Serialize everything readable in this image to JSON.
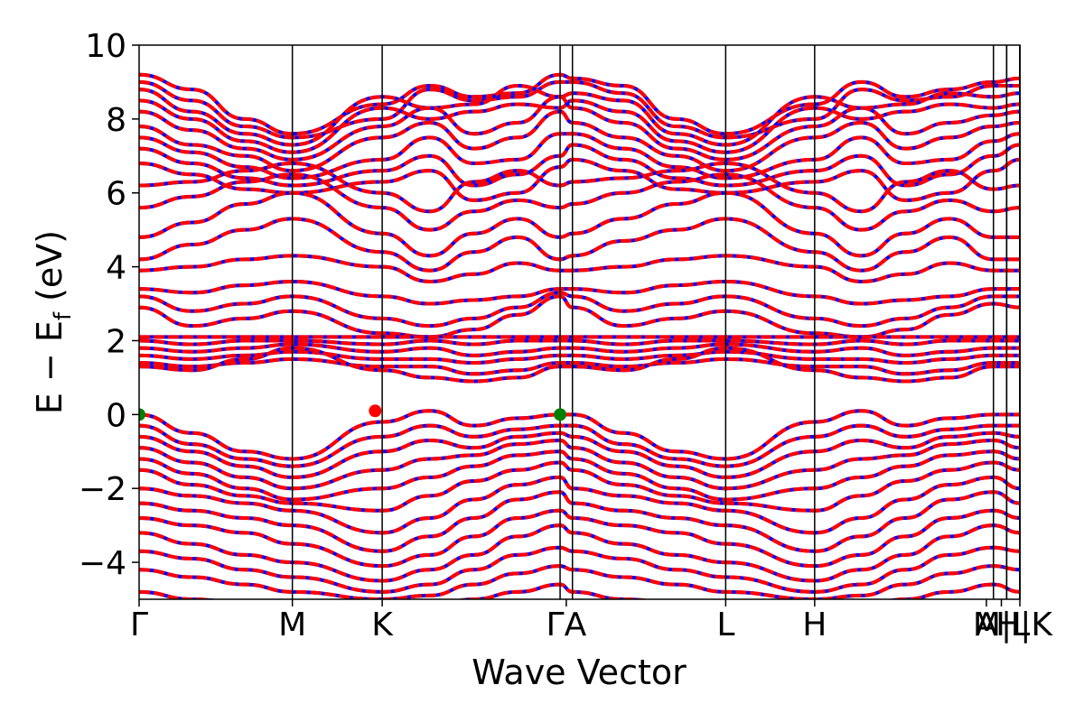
{
  "chart_data": {
    "type": "line",
    "xlabel": "Wave Vector",
    "ylabel_main": "E − E",
    "ylabel_sub": "f",
    "ylabel_unit": " (eV)",
    "ylim": [
      -5,
      10
    ],
    "yticks": [
      -4,
      -2,
      0,
      2,
      4,
      6,
      8,
      10
    ],
    "ytick_labels": [
      "−4",
      "−2",
      "0",
      "2",
      "4",
      "6",
      "8",
      "10"
    ],
    "kpath": [
      {
        "label": "Γ",
        "x": 0.0
      },
      {
        "label": "M",
        "x": 0.174
      },
      {
        "label": "K",
        "x": 0.276
      },
      {
        "label": "Γ",
        "x": 0.478
      },
      {
        "label": "A",
        "x": 0.492
      },
      {
        "label": "L",
        "x": 0.666
      },
      {
        "label": "H",
        "x": 0.767
      },
      {
        "label": "A",
        "x": 0.97
      },
      {
        "label": "L",
        "x": 0.985
      },
      {
        "label": "M",
        "x": 0.985
      },
      {
        "label": "H",
        "x": 1.0
      },
      {
        "label": "K",
        "x": 1.0
      }
    ],
    "xtick_labels": [
      {
        "text": "Γ",
        "x": 0.0
      },
      {
        "text": "M",
        "x": 0.174
      },
      {
        "text": "K",
        "x": 0.276
      },
      {
        "text": "ΓA",
        "x": 0.485
      },
      {
        "text": "L",
        "x": 0.666
      },
      {
        "text": "H",
        "x": 0.767
      },
      {
        "text": "A",
        "x": 0.962
      },
      {
        "text": "M|L",
        "x": 0.979
      },
      {
        "text": "H|K",
        "x": 1.0
      }
    ],
    "series": [
      {
        "color": "#0000ff",
        "style": "solid"
      },
      {
        "color": "#ff0000",
        "style": "dashed"
      }
    ],
    "markers": [
      {
        "x": 0.0,
        "y": 0.0,
        "color": "#008000"
      },
      {
        "x": 0.478,
        "y": 0.0,
        "color": "#008000"
      },
      {
        "x": 0.268,
        "y": 0.1,
        "color": "#ff0000"
      }
    ],
    "bands": [
      [
        9.2,
        8.8,
        8.0,
        7.6,
        8.4,
        8.9,
        8.6,
        8.7,
        9.2,
        9.1,
        8.9,
        8.0,
        7.6,
        8.4,
        9.0,
        8.6,
        8.8,
        9.0,
        9.1
      ],
      [
        9.0,
        8.5,
        7.8,
        7.5,
        8.0,
        8.8,
        8.5,
        8.6,
        9.0,
        9.0,
        8.7,
        7.8,
        7.5,
        8.0,
        8.8,
        8.5,
        8.6,
        8.9,
        8.9
      ],
      [
        8.8,
        8.2,
        7.6,
        7.3,
        8.6,
        8.3,
        8.4,
        8.9,
        8.6,
        8.7,
        8.5,
        7.6,
        7.3,
        8.6,
        8.3,
        8.4,
        8.7,
        8.6,
        8.7
      ],
      [
        8.5,
        8.0,
        7.4,
        7.1,
        8.3,
        8.0,
        8.2,
        8.4,
        8.3,
        8.5,
        8.2,
        7.4,
        7.1,
        8.3,
        8.0,
        8.2,
        8.4,
        8.3,
        8.4
      ],
      [
        8.2,
        7.7,
        7.2,
        6.9,
        7.8,
        8.3,
        7.6,
        7.9,
        8.6,
        8.3,
        7.9,
        7.2,
        6.9,
        7.8,
        8.3,
        7.6,
        7.9,
        8.1,
        8.2
      ],
      [
        7.8,
        7.3,
        7.0,
        6.6,
        7.5,
        7.9,
        7.2,
        7.5,
        8.2,
        7.9,
        7.5,
        7.0,
        6.6,
        7.5,
        7.9,
        7.2,
        7.5,
        7.8,
        7.9
      ],
      [
        7.5,
        7.1,
        6.7,
        6.4,
        6.9,
        7.5,
        6.8,
        6.9,
        7.6,
        7.6,
        7.2,
        6.7,
        6.4,
        6.9,
        7.5,
        6.8,
        6.9,
        7.4,
        7.6
      ],
      [
        7.2,
        6.8,
        6.4,
        6.2,
        6.6,
        7.0,
        6.2,
        6.5,
        7.0,
        7.3,
        6.9,
        6.4,
        6.2,
        6.6,
        7.0,
        6.2,
        6.5,
        7.0,
        7.3
      ],
      [
        6.8,
        6.5,
        6.1,
        6.0,
        6.3,
        6.6,
        5.8,
        6.0,
        6.7,
        6.9,
        6.6,
        6.1,
        6.0,
        6.3,
        6.6,
        5.8,
        6.0,
        6.6,
        6.9
      ],
      [
        6.2,
        6.3,
        6.6,
        6.8,
        6.0,
        5.5,
        6.3,
        6.6,
        6.2,
        6.3,
        6.4,
        6.6,
        6.8,
        6.0,
        5.5,
        6.3,
        6.6,
        6.1,
        6.2
      ],
      [
        5.6,
        5.9,
        6.3,
        6.5,
        5.6,
        5.0,
        5.5,
        5.8,
        5.6,
        5.7,
        6.0,
        6.3,
        6.5,
        5.6,
        5.0,
        5.5,
        5.8,
        5.5,
        5.6
      ],
      [
        4.8,
        5.2,
        5.7,
        6.0,
        4.9,
        4.3,
        4.9,
        5.3,
        4.8,
        4.9,
        5.3,
        5.7,
        6.0,
        4.9,
        4.3,
        4.9,
        5.3,
        4.8,
        4.8
      ],
      [
        4.2,
        4.6,
        5.0,
        5.3,
        4.4,
        3.9,
        4.4,
        4.8,
        4.2,
        4.3,
        4.7,
        5.0,
        5.3,
        4.4,
        3.9,
        4.4,
        4.8,
        4.2,
        4.2
      ],
      [
        3.9,
        4.0,
        4.2,
        4.3,
        4.0,
        3.6,
        3.8,
        4.1,
        3.9,
        3.9,
        4.0,
        4.2,
        4.3,
        4.0,
        3.6,
        3.8,
        4.1,
        3.9,
        3.9
      ],
      [
        3.4,
        3.3,
        3.5,
        3.6,
        3.2,
        3.0,
        3.1,
        3.2,
        3.4,
        3.4,
        3.3,
        3.5,
        3.6,
        3.2,
        3.0,
        3.1,
        3.2,
        3.4,
        3.4
      ],
      [
        3.2,
        2.8,
        3.0,
        3.2,
        2.6,
        2.4,
        2.6,
        2.9,
        3.3,
        3.2,
        2.8,
        3.0,
        3.2,
        2.6,
        2.4,
        2.6,
        2.9,
        3.2,
        3.2
      ],
      [
        2.9,
        2.4,
        2.6,
        2.8,
        2.2,
        2.1,
        2.3,
        2.7,
        3.2,
        2.9,
        2.4,
        2.6,
        2.8,
        2.2,
        2.1,
        2.3,
        2.7,
        3.0,
        2.9
      ],
      [
        2.1,
        2.1,
        2.1,
        2.1,
        2.1,
        2.1,
        2.1,
        2.1,
        2.1,
        2.1,
        2.1,
        2.1,
        2.1,
        2.1,
        2.1,
        2.1,
        2.1,
        2.1,
        2.1
      ],
      [
        2.0,
        1.9,
        2.0,
        2.0,
        1.9,
        2.0,
        1.9,
        2.0,
        2.0,
        2.0,
        1.9,
        2.0,
        2.0,
        1.9,
        2.0,
        1.9,
        2.0,
        2.0,
        2.0
      ],
      [
        1.8,
        1.7,
        1.8,
        1.9,
        1.7,
        1.8,
        1.6,
        1.7,
        1.8,
        1.8,
        1.7,
        1.8,
        1.9,
        1.7,
        1.8,
        1.6,
        1.7,
        1.8,
        1.8
      ],
      [
        1.6,
        1.5,
        1.6,
        1.7,
        1.5,
        1.5,
        1.4,
        1.5,
        1.6,
        1.6,
        1.5,
        1.6,
        1.7,
        1.5,
        1.5,
        1.4,
        1.5,
        1.6,
        1.6
      ],
      [
        1.4,
        1.3,
        1.4,
        1.5,
        1.3,
        1.3,
        1.1,
        1.2,
        1.4,
        1.4,
        1.3,
        1.4,
        1.5,
        1.3,
        1.3,
        1.1,
        1.2,
        1.4,
        1.4
      ],
      [
        1.3,
        1.2,
        1.5,
        1.8,
        1.2,
        1.0,
        0.9,
        1.0,
        1.3,
        1.3,
        1.2,
        1.5,
        1.8,
        1.2,
        1.0,
        0.9,
        1.0,
        1.3,
        1.3
      ],
      [
        0.0,
        -0.5,
        -1.0,
        -1.2,
        -0.2,
        0.1,
        -0.3,
        -0.1,
        0.0,
        0.0,
        -0.5,
        -1.0,
        -1.2,
        -0.2,
        0.1,
        -0.3,
        -0.1,
        0.0,
        0.0
      ],
      [
        -0.3,
        -0.8,
        -1.2,
        -1.4,
        -0.6,
        -0.3,
        -0.6,
        -0.4,
        -0.3,
        -0.3,
        -0.8,
        -1.2,
        -1.4,
        -0.6,
        -0.3,
        -0.6,
        -0.4,
        -0.3,
        -0.3
      ],
      [
        -0.6,
        -1.0,
        -1.4,
        -1.7,
        -1.0,
        -0.7,
        -0.9,
        -0.6,
        -0.5,
        -0.6,
        -1.0,
        -1.4,
        -1.7,
        -1.0,
        -0.7,
        -0.9,
        -0.6,
        -0.5,
        -0.6
      ],
      [
        -0.9,
        -1.3,
        -1.7,
        -2.0,
        -1.5,
        -1.2,
        -1.1,
        -0.8,
        -0.7,
        -0.9,
        -1.3,
        -1.7,
        -2.0,
        -1.5,
        -1.2,
        -1.1,
        -0.8,
        -0.7,
        -0.9
      ],
      [
        -1.2,
        -1.6,
        -2.0,
        -2.3,
        -2.0,
        -1.7,
        -1.4,
        -1.1,
        -1.0,
        -1.2,
        -1.6,
        -2.0,
        -2.3,
        -2.0,
        -1.7,
        -1.4,
        -1.1,
        -1.0,
        -1.2
      ],
      [
        -1.5,
        -1.9,
        -2.2,
        -2.4,
        -2.6,
        -2.2,
        -1.8,
        -1.5,
        -1.3,
        -1.5,
        -1.9,
        -2.2,
        -2.4,
        -2.6,
        -2.2,
        -1.8,
        -1.5,
        -1.3,
        -1.5
      ],
      [
        -2.0,
        -2.2,
        -2.4,
        -2.6,
        -3.2,
        -2.8,
        -2.3,
        -1.9,
        -1.7,
        -2.0,
        -2.2,
        -2.4,
        -2.6,
        -3.2,
        -2.8,
        -2.3,
        -1.9,
        -1.7,
        -2.0
      ],
      [
        -2.4,
        -2.6,
        -2.8,
        -3.0,
        -3.7,
        -3.3,
        -2.8,
        -2.3,
        -2.1,
        -2.4,
        -2.6,
        -2.8,
        -3.0,
        -3.7,
        -3.3,
        -2.8,
        -2.3,
        -2.1,
        -2.4
      ],
      [
        -2.8,
        -3.0,
        -3.2,
        -3.5,
        -4.1,
        -3.8,
        -3.3,
        -2.8,
        -2.6,
        -2.8,
        -3.0,
        -3.2,
        -3.5,
        -4.1,
        -3.8,
        -3.3,
        -2.8,
        -2.6,
        -2.8
      ],
      [
        -3.2,
        -3.5,
        -3.8,
        -4.0,
        -4.5,
        -4.2,
        -3.8,
        -3.3,
        -3.0,
        -3.2,
        -3.5,
        -3.8,
        -4.0,
        -4.5,
        -4.2,
        -3.8,
        -3.3,
        -3.0,
        -3.2
      ],
      [
        -3.7,
        -3.9,
        -4.2,
        -4.4,
        -4.8,
        -4.6,
        -4.2,
        -3.8,
        -3.6,
        -3.7,
        -3.9,
        -4.2,
        -4.4,
        -4.8,
        -4.6,
        -4.2,
        -3.8,
        -3.6,
        -3.7
      ],
      [
        -4.2,
        -4.4,
        -4.6,
        -4.8,
        -5.0,
        -4.9,
        -4.6,
        -4.3,
        -4.1,
        -4.2,
        -4.4,
        -4.6,
        -4.8,
        -5.0,
        -4.9,
        -4.6,
        -4.3,
        -4.1,
        -4.2
      ],
      [
        -4.8,
        -5.0,
        -5.1,
        -5.2,
        -5.3,
        -5.2,
        -5.0,
        -4.8,
        -4.6,
        -4.8,
        -5.0,
        -5.1,
        -5.2,
        -5.3,
        -5.2,
        -5.0,
        -4.8,
        -4.6,
        -4.8
      ]
    ],
    "band_x": [
      0.0,
      0.06,
      0.12,
      0.174,
      0.276,
      0.33,
      0.38,
      0.43,
      0.478,
      0.492,
      0.55,
      0.61,
      0.666,
      0.767,
      0.82,
      0.87,
      0.92,
      0.97,
      1.0
    ]
  }
}
